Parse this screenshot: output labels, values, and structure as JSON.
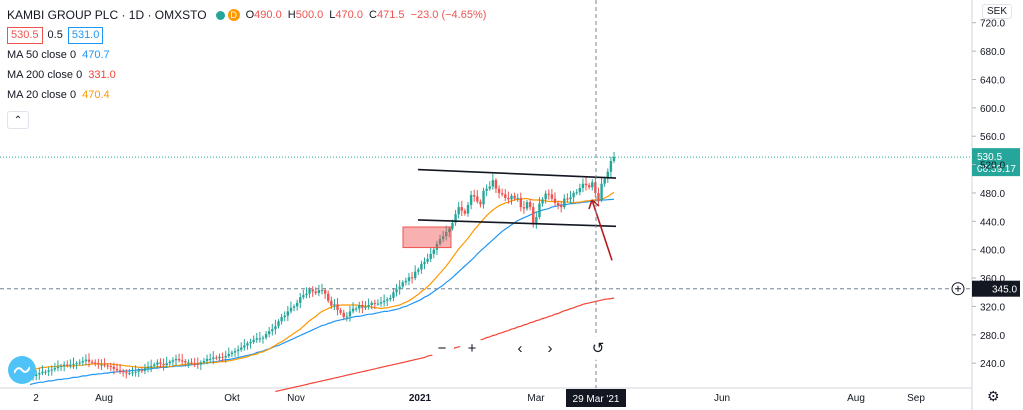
{
  "legend": {
    "title": "KAMBI GROUP PLC · 1D · OMXSTO",
    "ohlc": [
      {
        "k": "O",
        "v": "490.0"
      },
      {
        "k": "H",
        "v": "500.0"
      },
      {
        "k": "L",
        "v": "470.0"
      },
      {
        "k": "C",
        "v": "471.5"
      }
    ],
    "change": "−23.0 (−4.65%)",
    "d_badge": "D",
    "bid": "530.5",
    "spread": "0.5",
    "ask": "531.0",
    "mas": [
      {
        "label": "MA 50 close 0",
        "value": "470.7",
        "color": "#2196f3"
      },
      {
        "label": "MA 200 close 0",
        "value": "331.0",
        "color": "#f44336"
      },
      {
        "label": "MA 20 close 0",
        "value": "470.4",
        "color": "#ff9800"
      }
    ]
  },
  "currency": "SEK",
  "toolbar": {
    "zoom_out": "−",
    "zoom_in": "+",
    "back": "‹",
    "forward": "›",
    "reset": "↺"
  },
  "colors": {
    "up": "#26a69a",
    "down": "#ef5350",
    "ma50": "#2196f3",
    "ma20": "#ff9800",
    "ma200": "#f44336"
  },
  "chart_data": {
    "type": "candlestick",
    "x_ticks": [
      "2",
      "Aug",
      "Okt",
      "Nov",
      "2021",
      "Mar",
      "29 Mar '21",
      "Jun",
      "Aug",
      "Sep"
    ],
    "y_ticks": [
      240,
      280,
      320,
      360,
      400,
      440,
      480,
      520,
      560,
      600,
      640,
      680,
      720
    ],
    "ylim": [
      205,
      745
    ],
    "last_price": "530.5",
    "countdown": "06:39:17",
    "crosshair_price": "345.0",
    "crosshair_date": "29 Mar '21",
    "closes": [
      220,
      222,
      224,
      226,
      228,
      228,
      230,
      231,
      233,
      235,
      236,
      238,
      237,
      238,
      239,
      240,
      241,
      243,
      245,
      242,
      241,
      240,
      238,
      238,
      237,
      236,
      235,
      232,
      230,
      229,
      227,
      226,
      226,
      227,
      228,
      230,
      229,
      233,
      235,
      236,
      238,
      241,
      239,
      237,
      240,
      242,
      244,
      246,
      244,
      243,
      241,
      241,
      240,
      239,
      238,
      241,
      243,
      246,
      246,
      248,
      247,
      249,
      248,
      250,
      253,
      255,
      257,
      259,
      262,
      265,
      268,
      270,
      273,
      275,
      275,
      276,
      281,
      285,
      288,
      292,
      299,
      305,
      307,
      313,
      318,
      320,
      325,
      333,
      336,
      338,
      344,
      341,
      339,
      343,
      343,
      338,
      328,
      321,
      323,
      315,
      311,
      305,
      306,
      313,
      317,
      317,
      322,
      318,
      320,
      322,
      325,
      324,
      324,
      326,
      328,
      330,
      332,
      340,
      344,
      348,
      354,
      356,
      361,
      360,
      369,
      372,
      380,
      383,
      387,
      394,
      400,
      408,
      415,
      419,
      425,
      430,
      438,
      450,
      460,
      455,
      451,
      463,
      477,
      475,
      468,
      464,
      483,
      486,
      489,
      498,
      486,
      480,
      478,
      473,
      471,
      476,
      472,
      473,
      460,
      458,
      467,
      460,
      437,
      446,
      465,
      471,
      479,
      478,
      472,
      466,
      463,
      460,
      472,
      471,
      474,
      480,
      481,
      487,
      493,
      491,
      488,
      495,
      480,
      470,
      493,
      500,
      510,
      525,
      530.5
    ],
    "sma20": [
      230,
      231,
      232,
      233,
      234,
      234,
      235,
      235,
      235,
      236,
      236,
      236,
      236,
      236,
      236,
      237,
      237,
      237,
      238,
      238,
      239,
      239,
      239,
      239,
      239,
      239,
      239,
      238,
      238,
      237,
      237,
      236,
      236,
      235,
      235,
      234,
      234,
      234,
      234,
      234,
      234,
      235,
      235,
      235,
      235,
      235,
      236,
      237,
      237,
      238,
      238,
      239,
      239,
      239,
      240,
      240,
      240,
      241,
      241,
      241,
      241,
      242,
      242,
      243,
      243,
      244,
      245,
      246,
      247,
      248,
      249,
      251,
      252,
      253,
      255,
      256,
      258,
      260,
      263,
      265,
      268,
      270,
      273,
      276,
      279,
      282,
      285,
      288,
      292,
      296,
      300,
      303,
      306,
      310,
      313,
      315,
      317,
      319,
      320,
      321,
      322,
      322,
      322,
      322,
      322,
      322,
      321,
      321,
      320,
      320,
      319,
      318,
      318,
      317,
      318,
      318,
      319,
      320,
      321,
      322,
      324,
      326,
      328,
      331,
      334,
      337,
      341,
      344,
      348,
      352,
      357,
      362,
      367,
      372,
      377,
      383,
      389,
      395,
      401,
      406,
      411,
      416,
      422,
      428,
      433,
      438,
      443,
      448,
      452,
      456,
      459,
      462,
      464,
      466,
      467,
      469,
      470,
      471,
      471,
      472,
      472,
      471,
      470,
      470,
      470,
      469,
      469,
      468,
      468,
      468,
      468,
      468,
      467,
      467,
      467,
      466,
      467,
      467,
      468,
      469,
      469,
      470,
      470,
      470,
      471,
      473,
      475,
      478,
      481
    ],
    "sma50": [
      210,
      211,
      212,
      213,
      213,
      214,
      215,
      215,
      216,
      217,
      217,
      218,
      218,
      219,
      220,
      220,
      221,
      222,
      222,
      223,
      224,
      224,
      225,
      225,
      226,
      226,
      227,
      227,
      228,
      228,
      229,
      229,
      229,
      230,
      230,
      231,
      231,
      231,
      232,
      232,
      233,
      233,
      234,
      234,
      234,
      235,
      235,
      236,
      236,
      236,
      237,
      237,
      238,
      238,
      239,
      239,
      240,
      240,
      241,
      242,
      242,
      243,
      244,
      245,
      245,
      246,
      247,
      248,
      249,
      250,
      251,
      252,
      253,
      255,
      256,
      257,
      259,
      260,
      262,
      264,
      265,
      267,
      269,
      271,
      273,
      275,
      277,
      279,
      281,
      283,
      285,
      287,
      289,
      291,
      293,
      294,
      296,
      297,
      299,
      300,
      301,
      302,
      303,
      304,
      305,
      306,
      306,
      307,
      308,
      309,
      309,
      310,
      311,
      312,
      313,
      313,
      314,
      315,
      316,
      317,
      319,
      320,
      322,
      324,
      326,
      328,
      330,
      333,
      335,
      338,
      341,
      344,
      347,
      350,
      354,
      357,
      361,
      365,
      369,
      373,
      377,
      381,
      385,
      389,
      394,
      398,
      402,
      406,
      410,
      414,
      418,
      422,
      426,
      429,
      432,
      435,
      438,
      441,
      443,
      445,
      447,
      449,
      451,
      453,
      454,
      456,
      457,
      458,
      460,
      461,
      462,
      463,
      463,
      464,
      465,
      465,
      466,
      466,
      467,
      467,
      468,
      468,
      469,
      469,
      470,
      470,
      470.5,
      470.7,
      471
    ],
    "sma200": [
      null,
      null,
      null,
      null,
      null,
      null,
      null,
      null,
      null,
      null,
      null,
      null,
      null,
      null,
      null,
      null,
      null,
      null,
      null,
      null,
      null,
      null,
      null,
      null,
      null,
      null,
      null,
      null,
      null,
      null,
      null,
      null,
      null,
      null,
      null,
      null,
      null,
      null,
      null,
      null,
      null,
      null,
      null,
      null,
      null,
      null,
      null,
      null,
      null,
      null,
      null,
      null,
      null,
      null,
      null,
      null,
      null,
      null,
      null,
      null,
      null,
      null,
      null,
      null,
      null,
      null,
      null,
      null,
      null,
      null,
      null,
      null,
      null,
      null,
      null,
      null,
      null,
      null,
      null,
      200,
      201,
      202,
      203,
      204,
      205,
      206,
      207,
      208,
      209,
      210,
      211,
      212,
      213,
      214,
      215,
      216,
      217,
      218,
      219,
      220,
      221,
      222,
      223,
      224,
      225,
      226,
      227,
      228,
      229,
      230,
      231,
      232,
      233,
      234,
      235,
      236,
      237,
      238,
      239,
      240,
      241,
      242,
      243,
      244,
      245,
      246,
      247,
      248,
      250,
      251,
      252,
      254,
      255,
      256,
      258,
      259,
      260,
      262,
      263,
      264,
      266,
      267,
      268,
      270,
      271,
      273,
      274,
      276,
      277,
      279,
      280,
      282,
      283,
      285,
      286,
      288,
      289,
      291,
      292,
      294,
      295,
      297,
      298,
      300,
      301,
      303,
      304,
      306,
      307,
      309,
      310,
      312,
      314,
      315,
      317,
      318,
      320,
      321,
      323,
      324,
      325,
      326,
      327,
      328,
      329,
      330,
      330.5,
      331,
      332
    ]
  }
}
